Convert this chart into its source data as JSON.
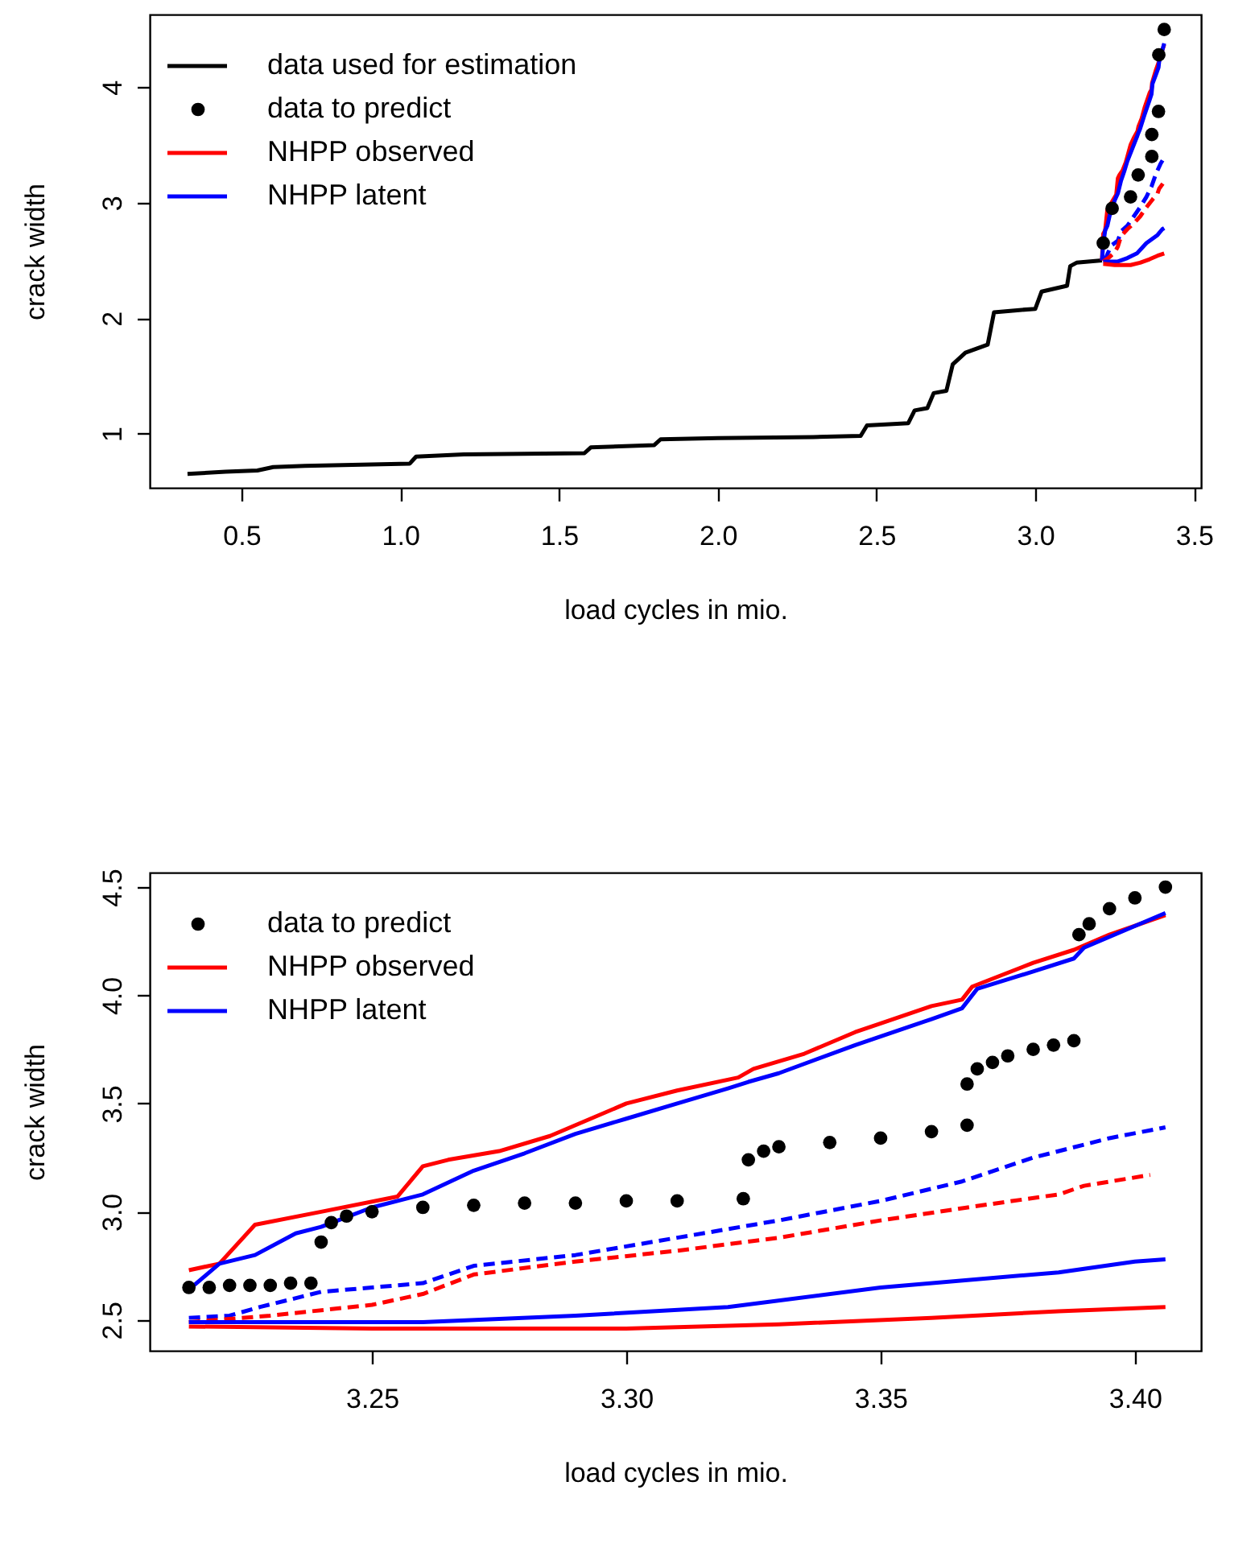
{
  "chart_data": [
    {
      "type": "line",
      "xlabel": "load cycles in mio.",
      "ylabel": "crack width",
      "legend": "top left",
      "xlim": [
        0.211,
        3.522
      ],
      "ylim": [
        0.53,
        4.63
      ],
      "xticks": [
        0.5,
        {
          "value": 1,
          "label": "1.0"
        },
        1.5,
        {
          "value": 2,
          "label": "2.0"
        },
        2.5,
        {
          "value": 3,
          "label": "3.0"
        },
        3.5
      ],
      "yticks": [
        1,
        2,
        3,
        4
      ],
      "series": [
        {
          "name": "data used for estimation",
          "color": "#000000",
          "x": [
            0.33,
            0.45,
            0.55,
            0.6,
            0.7,
            1.03,
            1.05,
            1.2,
            1.58,
            1.6,
            1.8,
            1.82,
            2.0,
            2.3,
            2.45,
            2.47,
            2.6,
            2.62,
            2.66,
            2.68,
            2.72,
            2.74,
            2.78,
            2.85,
            2.87,
            2.95,
            3.0,
            3.02,
            3.1,
            3.11,
            3.13,
            3.21
          ],
          "values": [
            0.65,
            0.67,
            0.68,
            0.71,
            0.72,
            0.74,
            0.8,
            0.82,
            0.83,
            0.88,
            0.9,
            0.95,
            0.96,
            0.97,
            0.98,
            1.07,
            1.09,
            1.2,
            1.22,
            1.35,
            1.37,
            1.6,
            1.7,
            1.77,
            2.05,
            2.07,
            2.08,
            2.23,
            2.28,
            2.45,
            2.48,
            2.5
          ]
        },
        {
          "name": "data to predict",
          "type": "scatter",
          "color": "#000000",
          "x": [
            3.214,
            3.242,
            3.3,
            3.324,
            3.367,
            3.367,
            3.388,
            3.389,
            3.406
          ],
          "values": [
            2.65,
            2.95,
            3.05,
            3.24,
            3.4,
            3.59,
            3.79,
            4.28,
            4.5
          ]
        },
        {
          "name": "NHPP observed",
          "color": "#ff0000",
          "x": [
            3.21,
            3.214,
            3.22,
            3.227,
            3.24,
            3.255,
            3.26,
            3.265,
            3.275,
            3.285,
            3.3,
            3.31,
            3.322,
            3.325,
            3.335,
            3.345,
            3.36,
            3.366,
            3.368,
            3.38,
            3.388,
            3.395,
            3.406
          ],
          "values": [
            2.5,
            2.73,
            2.76,
            2.94,
            3.0,
            3.07,
            3.21,
            3.24,
            3.28,
            3.35,
            3.5,
            3.56,
            3.62,
            3.66,
            3.73,
            3.83,
            3.95,
            3.98,
            4.04,
            4.15,
            4.21,
            4.28,
            4.37
          ]
        },
        {
          "name": "NHPP latent",
          "color": "#0000ff",
          "x": [
            3.21,
            3.214,
            3.22,
            3.227,
            3.235,
            3.24,
            3.25,
            3.26,
            3.27,
            3.28,
            3.29,
            3.3,
            3.31,
            3.32,
            3.324,
            3.33,
            3.345,
            3.36,
            3.366,
            3.369,
            3.38,
            3.388,
            3.39,
            3.406
          ],
          "values": [
            2.5,
            2.64,
            2.76,
            2.8,
            2.9,
            2.93,
            3.02,
            3.08,
            3.19,
            3.27,
            3.36,
            3.43,
            3.5,
            3.57,
            3.6,
            3.64,
            3.77,
            3.89,
            3.94,
            4.03,
            4.11,
            4.17,
            4.22,
            4.38
          ]
        },
        {
          "line_style": "dashed",
          "color": "#0000ff",
          "x": [
            3.214,
            3.222,
            3.228,
            3.24,
            3.26,
            3.27,
            3.29,
            3.31,
            3.33,
            3.35,
            3.366,
            3.38,
            3.395,
            3.406
          ],
          "values": [
            2.51,
            2.52,
            2.56,
            2.63,
            2.67,
            2.75,
            2.8,
            2.88,
            2.96,
            3.05,
            3.14,
            3.25,
            3.34,
            3.39
          ]
        },
        {
          "line_style": "dashed",
          "color": "#ff0000",
          "x": [
            3.214,
            3.23,
            3.25,
            3.26,
            3.27,
            3.29,
            3.31,
            3.33,
            3.35,
            3.37,
            3.385,
            3.39,
            3.403
          ],
          "values": [
            2.49,
            2.52,
            2.57,
            2.62,
            2.71,
            2.77,
            2.82,
            2.88,
            2.96,
            3.03,
            3.08,
            3.12,
            3.17
          ]
        },
        {
          "color": "#0000ff",
          "x": [
            3.214,
            3.26,
            3.29,
            3.32,
            3.35,
            3.385,
            3.4,
            3.406
          ],
          "values": [
            2.49,
            2.49,
            2.52,
            2.56,
            2.65,
            2.72,
            2.77,
            2.78
          ]
        },
        {
          "color": "#ff0000",
          "x": [
            3.214,
            3.25,
            3.3,
            3.33,
            3.36,
            3.385,
            3.406
          ],
          "values": [
            2.47,
            2.46,
            2.46,
            2.48,
            2.51,
            2.54,
            2.56
          ]
        }
      ]
    },
    {
      "type": "line",
      "xlabel": "load cycles in mio.",
      "ylabel": "crack width",
      "legend": "top left",
      "xlim": [
        3.2063,
        3.413
      ],
      "ylim": [
        2.358,
        4.567
      ],
      "xticks": [
        3.25,
        {
          "value": 3.3,
          "label": "3.30"
        },
        3.35,
        {
          "value": 3.4,
          "label": "3.40"
        }
      ],
      "yticks": [
        2.5,
        {
          "value": 3,
          "label": "3.0"
        },
        3.5,
        {
          "value": 4,
          "label": "4.0"
        },
        4.5
      ],
      "series": [
        {
          "name": "data to predict",
          "type": "scatter",
          "color": "#000000",
          "x": [
            3.214,
            3.218,
            3.222,
            3.226,
            3.23,
            3.234,
            3.238,
            3.24,
            3.242,
            3.245,
            3.25,
            3.26,
            3.27,
            3.28,
            3.29,
            3.3,
            3.31,
            3.323,
            3.324,
            3.327,
            3.33,
            3.34,
            3.35,
            3.36,
            3.367,
            3.367,
            3.369,
            3.372,
            3.375,
            3.38,
            3.384,
            3.388,
            3.389,
            3.391,
            3.395,
            3.4,
            3.406
          ],
          "values": [
            2.65,
            2.65,
            2.66,
            2.66,
            2.66,
            2.67,
            2.67,
            2.86,
            2.95,
            2.98,
            3.0,
            3.02,
            3.03,
            3.04,
            3.04,
            3.05,
            3.05,
            3.06,
            3.24,
            3.28,
            3.3,
            3.32,
            3.34,
            3.37,
            3.4,
            3.59,
            3.66,
            3.69,
            3.72,
            3.75,
            3.77,
            3.79,
            4.28,
            4.33,
            4.4,
            4.45,
            4.5
          ]
        },
        {
          "name": "NHPP observed",
          "color": "#ff0000",
          "x": [
            3.214,
            3.22,
            3.227,
            3.24,
            3.255,
            3.26,
            3.265,
            3.275,
            3.285,
            3.3,
            3.31,
            3.322,
            3.325,
            3.335,
            3.345,
            3.36,
            3.366,
            3.368,
            3.38,
            3.388,
            3.395,
            3.406
          ],
          "values": [
            2.73,
            2.76,
            2.94,
            3.0,
            3.07,
            3.21,
            3.24,
            3.28,
            3.35,
            3.5,
            3.56,
            3.62,
            3.66,
            3.73,
            3.83,
            3.95,
            3.98,
            4.04,
            4.15,
            4.21,
            4.28,
            4.37
          ]
        },
        {
          "name": "NHPP latent",
          "color": "#0000ff",
          "x": [
            3.214,
            3.22,
            3.227,
            3.235,
            3.24,
            3.25,
            3.26,
            3.27,
            3.28,
            3.29,
            3.3,
            3.31,
            3.32,
            3.324,
            3.33,
            3.345,
            3.36,
            3.366,
            3.369,
            3.38,
            3.388,
            3.39,
            3.406
          ],
          "values": [
            2.64,
            2.76,
            2.8,
            2.9,
            2.93,
            3.02,
            3.08,
            3.19,
            3.27,
            3.36,
            3.43,
            3.5,
            3.57,
            3.6,
            3.64,
            3.77,
            3.89,
            3.94,
            4.03,
            4.11,
            4.17,
            4.22,
            4.38
          ]
        },
        {
          "line_style": "dashed",
          "color": "#0000ff",
          "x": [
            3.214,
            3.222,
            3.228,
            3.24,
            3.26,
            3.27,
            3.29,
            3.31,
            3.33,
            3.35,
            3.366,
            3.38,
            3.395,
            3.406
          ],
          "values": [
            2.51,
            2.52,
            2.56,
            2.63,
            2.67,
            2.75,
            2.8,
            2.88,
            2.96,
            3.05,
            3.14,
            3.25,
            3.34,
            3.39
          ]
        },
        {
          "line_style": "dashed",
          "color": "#ff0000",
          "x": [
            3.214,
            3.23,
            3.25,
            3.26,
            3.27,
            3.29,
            3.31,
            3.33,
            3.35,
            3.37,
            3.385,
            3.39,
            3.403
          ],
          "values": [
            2.49,
            2.52,
            2.57,
            2.62,
            2.71,
            2.77,
            2.82,
            2.88,
            2.96,
            3.03,
            3.08,
            3.12,
            3.17
          ]
        },
        {
          "color": "#0000ff",
          "x": [
            3.214,
            3.26,
            3.29,
            3.32,
            3.35,
            3.385,
            3.4,
            3.406
          ],
          "values": [
            2.49,
            2.49,
            2.52,
            2.56,
            2.65,
            2.72,
            2.77,
            2.78
          ]
        },
        {
          "color": "#ff0000",
          "x": [
            3.214,
            3.25,
            3.3,
            3.33,
            3.36,
            3.385,
            3.406
          ],
          "values": [
            2.47,
            2.46,
            2.46,
            2.48,
            2.51,
            2.54,
            2.56
          ]
        }
      ]
    }
  ]
}
